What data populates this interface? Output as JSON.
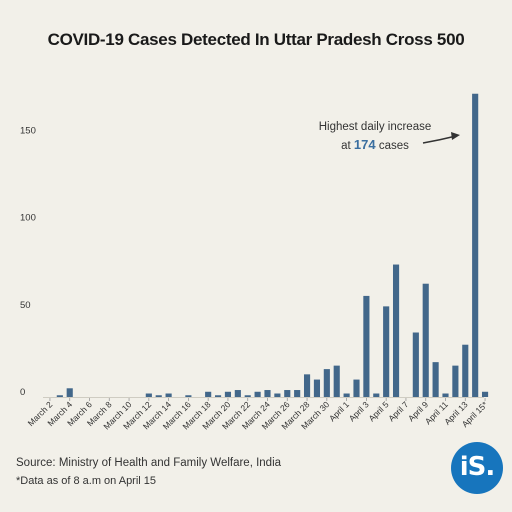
{
  "title": "COVID-19 Cases Detected In Uttar Pradesh Cross 500",
  "source": "Source: Ministry of Health and Family Welfare, India",
  "footnote": "*Data as of 8 a.m on April 15",
  "logo_text": "iS.",
  "colors": {
    "bar": "#42678a",
    "background": "#f2f0e9",
    "logo": "#1775bd",
    "annotation_number": "#3b6fa0"
  },
  "chart_data": {
    "type": "bar",
    "title": "COVID-19 Cases Detected In Uttar Pradesh Cross 500",
    "xlabel": "",
    "ylabel": "",
    "ylim": [
      0,
      175
    ],
    "yticks": [
      0,
      50,
      100,
      150
    ],
    "grid": false,
    "categories": [
      "March 2",
      "March 3",
      "March 4",
      "March 5",
      "March 6",
      "March 7",
      "March 8",
      "March 9",
      "March 10",
      "March 11",
      "March 12",
      "March 13",
      "March 14",
      "March 15",
      "March 16",
      "March 17",
      "March 18",
      "March 19",
      "March 20",
      "March 21",
      "March 22",
      "March 23",
      "March 24",
      "March 25",
      "March 26",
      "March 27",
      "March 28",
      "March 29",
      "March 30",
      "March 31",
      "April 1",
      "April 2",
      "April 3",
      "April 4",
      "April 5",
      "April 6",
      "April 7",
      "April 8",
      "April 9",
      "April 10",
      "April 11",
      "April 12",
      "April 13",
      "April 14",
      "April 15*"
    ],
    "xtick_labels": [
      "March 2",
      "March 4",
      "March 6",
      "March 8",
      "March 10",
      "March 12",
      "March 14",
      "March 16",
      "March 18",
      "March 20",
      "March 22",
      "March 24",
      "March 26",
      "March 28",
      "March 30",
      "April 1",
      "April 3",
      "April 5",
      "April 7",
      "April 9",
      "April 11",
      "April 13",
      "April 15*"
    ],
    "values": [
      0,
      1,
      5,
      0,
      0,
      0,
      0,
      0,
      0,
      0,
      2,
      1,
      2,
      0,
      1,
      0,
      3,
      1,
      3,
      4,
      1,
      3,
      4,
      2,
      4,
      4,
      13,
      10,
      16,
      18,
      2,
      10,
      58,
      2,
      52,
      76,
      0,
      37,
      65,
      20,
      2,
      18,
      30,
      174,
      3
    ],
    "annotation": {
      "line1": "Highest daily increase",
      "prefix": "at",
      "number": "174",
      "suffix": "cases"
    }
  }
}
